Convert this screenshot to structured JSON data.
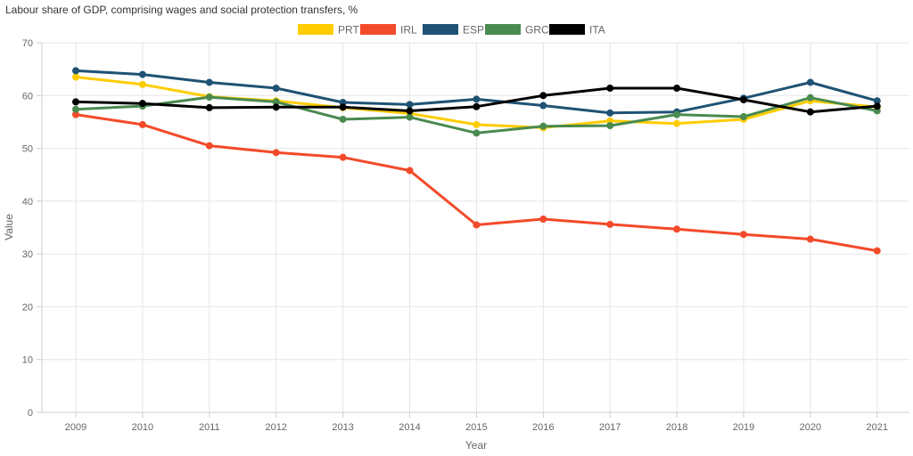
{
  "chart_data": {
    "type": "line",
    "title": "Labour share of GDP, comprising wages and social protection transfers, %",
    "xlabel": "Year",
    "ylabel": "Value",
    "ylim": [
      0,
      70
    ],
    "yticks": [
      0,
      10,
      20,
      30,
      40,
      50,
      60,
      70
    ],
    "grid": true,
    "legend_position": "top",
    "categories": [
      "2009",
      "2010",
      "2011",
      "2012",
      "2013",
      "2014",
      "2015",
      "2016",
      "2017",
      "2018",
      "2019",
      "2020",
      "2021"
    ],
    "series": [
      {
        "name": "PRT",
        "color": "#FFCC00",
        "values": [
          63.5,
          62.1,
          59.8,
          59.0,
          57.7,
          56.6,
          54.5,
          53.9,
          55.2,
          54.7,
          55.5,
          59.0,
          57.8
        ]
      },
      {
        "name": "IRL",
        "color": "#F34A2A",
        "values": [
          56.4,
          54.5,
          50.5,
          49.2,
          48.3,
          45.8,
          35.5,
          36.6,
          35.6,
          34.7,
          33.7,
          32.8,
          30.6
        ]
      },
      {
        "name": "ESP",
        "color": "#1F5274",
        "values": [
          64.7,
          64.0,
          62.5,
          61.4,
          58.7,
          58.3,
          59.3,
          58.1,
          56.7,
          56.9,
          59.5,
          62.5,
          59.0
        ]
      },
      {
        "name": "GRC",
        "color": "#4A8A4F",
        "values": [
          57.4,
          58.0,
          59.7,
          58.8,
          55.5,
          55.9,
          52.9,
          54.2,
          54.3,
          56.4,
          56.0,
          59.6,
          57.1
        ]
      },
      {
        "name": "ITA",
        "color": "#000000",
        "values": [
          58.8,
          58.5,
          57.7,
          57.8,
          57.8,
          57.1,
          57.9,
          60.0,
          61.4,
          61.4,
          59.2,
          56.9,
          58.0
        ]
      }
    ]
  }
}
